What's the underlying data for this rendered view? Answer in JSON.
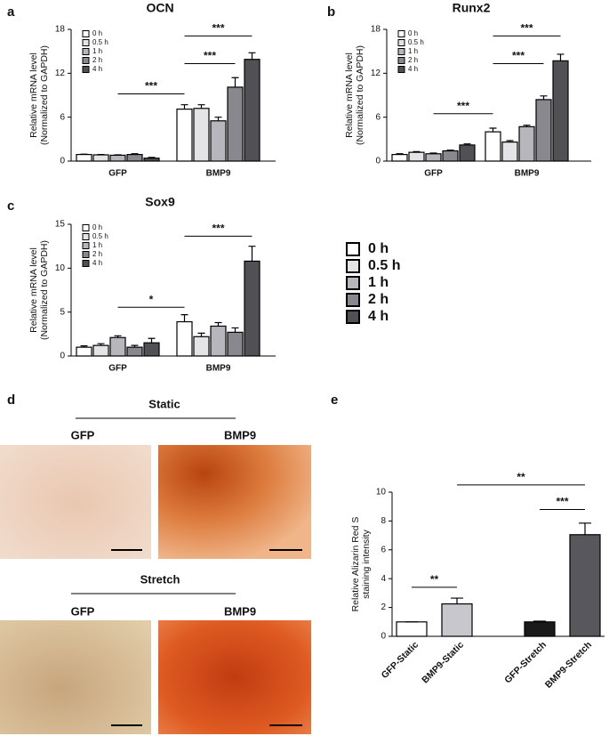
{
  "chart_data": [
    {
      "type": "bar",
      "panel_label": "a",
      "title": "OCN",
      "ylabel": [
        "Relative mRNA level",
        "(Normalized to GAPDH)"
      ],
      "categories": [
        "GFP",
        "BMP9"
      ],
      "ylim": [
        0,
        18
      ],
      "yticks": [
        0,
        6,
        12,
        18
      ],
      "series": [
        {
          "name": "0 h",
          "color": "#ffffff",
          "values": [
            0.9,
            7.1
          ],
          "errors": [
            0.05,
            0.6
          ]
        },
        {
          "name": "0.5 h",
          "color": "#e4e4e6",
          "values": [
            0.85,
            7.2
          ],
          "errors": [
            0.05,
            0.5
          ]
        },
        {
          "name": "1 h",
          "color": "#b6b6bc",
          "values": [
            0.8,
            5.5
          ],
          "errors": [
            0.05,
            0.5
          ]
        },
        {
          "name": "2 h",
          "color": "#88888e",
          "values": [
            0.9,
            10.1
          ],
          "errors": [
            0.1,
            1.3
          ]
        },
        {
          "name": "4 h",
          "color": "#505055",
          "values": [
            0.4,
            13.9
          ],
          "errors": [
            0.1,
            0.9
          ]
        }
      ],
      "annotations": [
        "***",
        "***",
        "***"
      ]
    },
    {
      "type": "bar",
      "panel_label": "b",
      "title": "Runx2",
      "ylabel": [
        "Relative mRNA level",
        "(Normalized to GAPDH)"
      ],
      "categories": [
        "GFP",
        "BMP9"
      ],
      "ylim": [
        0,
        18
      ],
      "yticks": [
        0,
        6,
        12,
        18
      ],
      "series": [
        {
          "name": "0 h",
          "color": "#ffffff",
          "values": [
            0.9,
            4.0
          ],
          "errors": [
            0.1,
            0.5
          ]
        },
        {
          "name": "0.5 h",
          "color": "#e4e4e6",
          "values": [
            1.2,
            2.6
          ],
          "errors": [
            0.1,
            0.2
          ]
        },
        {
          "name": "1 h",
          "color": "#b6b6bc",
          "values": [
            1.0,
            4.7
          ],
          "errors": [
            0.1,
            0.2
          ]
        },
        {
          "name": "2 h",
          "color": "#88888e",
          "values": [
            1.4,
            8.4
          ],
          "errors": [
            0.1,
            0.5
          ]
        },
        {
          "name": "4 h",
          "color": "#505055",
          "values": [
            2.2,
            13.7
          ],
          "errors": [
            0.15,
            0.9
          ]
        }
      ],
      "annotations": [
        "***",
        "***",
        "***"
      ]
    },
    {
      "type": "bar",
      "panel_label": "c",
      "title": "Sox9",
      "ylabel": [
        "Relative mRNA level",
        "(Normalized to GAPDH)"
      ],
      "categories": [
        "GFP",
        "BMP9"
      ],
      "ylim": [
        0,
        15
      ],
      "yticks": [
        0,
        5,
        10,
        15
      ],
      "series": [
        {
          "name": "0 h",
          "color": "#ffffff",
          "values": [
            1.0,
            3.9
          ],
          "errors": [
            0.15,
            0.8
          ]
        },
        {
          "name": "0.5 h",
          "color": "#e4e4e6",
          "values": [
            1.2,
            2.2
          ],
          "errors": [
            0.2,
            0.4
          ]
        },
        {
          "name": "1 h",
          "color": "#b6b6bc",
          "values": [
            2.1,
            3.4
          ],
          "errors": [
            0.2,
            0.4
          ]
        },
        {
          "name": "2 h",
          "color": "#88888e",
          "values": [
            1.0,
            2.7
          ],
          "errors": [
            0.2,
            0.5
          ]
        },
        {
          "name": "4 h",
          "color": "#505055",
          "values": [
            1.5,
            10.8
          ],
          "errors": [
            0.5,
            1.7
          ]
        }
      ],
      "annotations": [
        "*",
        "***"
      ]
    },
    {
      "type": "bar",
      "panel_label": "e",
      "ylabel": [
        "Relative Alizarin Red S",
        "staining intensity"
      ],
      "categories": [
        "GFP-Static",
        "BMP9-Static",
        "GFP-Stretch",
        "BMP9-Stretch"
      ],
      "values": [
        1,
        2.25,
        1,
        7.05
      ],
      "errors": [
        0,
        0.4,
        0.05,
        0.8
      ],
      "colors": [
        "#ffffff",
        "#c8c8cc",
        "#1a1a1a",
        "#58585c"
      ],
      "ylim": [
        0,
        10
      ],
      "yticks": [
        0,
        2,
        4,
        6,
        8,
        10
      ],
      "annotations": [
        "**",
        "***",
        "**"
      ]
    }
  ],
  "panel_d": {
    "panel_label": "d",
    "rows": [
      {
        "condition": "Static",
        "left": "GFP",
        "right": "BMP9"
      },
      {
        "condition": "Stretch",
        "left": "GFP",
        "right": "BMP9"
      }
    ]
  }
}
